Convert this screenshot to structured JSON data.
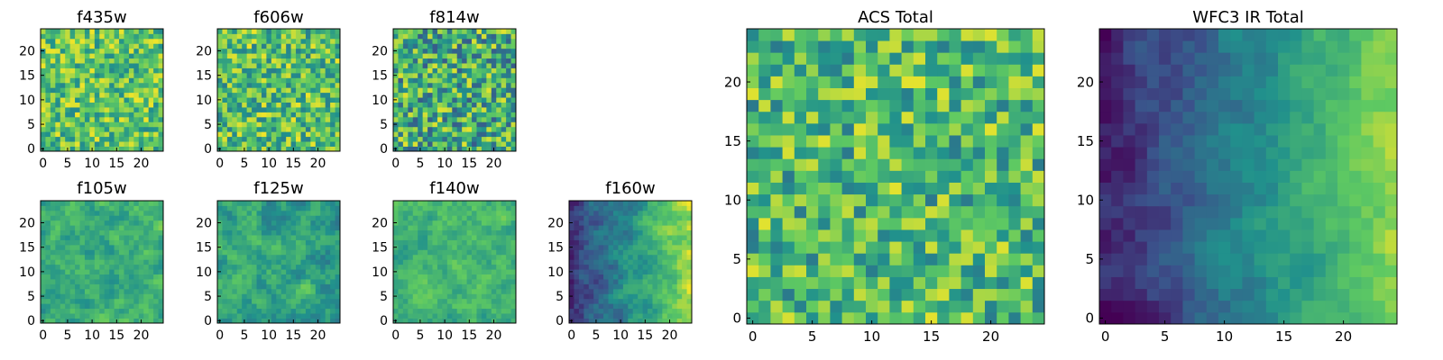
{
  "figure": {
    "description_free": true
  },
  "colormap": {
    "name": "viridis",
    "stops": [
      "#440154",
      "#3b528b",
      "#21918c",
      "#5ec962",
      "#fde725"
    ]
  },
  "chart_data": [
    {
      "type": "heatmap",
      "title": "f435w",
      "grid": [
        25,
        25
      ],
      "xlim": [
        0,
        24
      ],
      "ylim": [
        0,
        24
      ],
      "xticks": [
        "0",
        "5",
        "10",
        "15",
        "20"
      ],
      "yticks": [
        "0",
        "5",
        "10",
        "15",
        "20"
      ],
      "value_range": [
        0,
        1
      ],
      "texture": "noisy",
      "mean": 0.72,
      "spread": 0.26,
      "seed": 11
    },
    {
      "type": "heatmap",
      "title": "f606w",
      "grid": [
        25,
        25
      ],
      "xlim": [
        0,
        24
      ],
      "ylim": [
        0,
        24
      ],
      "xticks": [
        "0",
        "5",
        "10",
        "15",
        "20"
      ],
      "yticks": [
        "0",
        "5",
        "10",
        "15",
        "20"
      ],
      "value_range": [
        0,
        1
      ],
      "texture": "noisy",
      "mean": 0.7,
      "spread": 0.28,
      "seed": 23
    },
    {
      "type": "heatmap",
      "title": "f814w",
      "grid": [
        25,
        25
      ],
      "xlim": [
        0,
        24
      ],
      "ylim": [
        0,
        24
      ],
      "xticks": [
        "0",
        "5",
        "10",
        "15",
        "20"
      ],
      "yticks": [
        "0",
        "5",
        "10",
        "15",
        "20"
      ],
      "value_range": [
        0,
        1
      ],
      "texture": "noisy",
      "mean": 0.62,
      "spread": 0.34,
      "seed": 37
    },
    {
      "type": "heatmap",
      "title": "f105w",
      "grid": [
        25,
        25
      ],
      "xlim": [
        0,
        24
      ],
      "ylim": [
        0,
        24
      ],
      "xticks": [
        "0",
        "5",
        "10",
        "15",
        "20"
      ],
      "yticks": [
        "0",
        "5",
        "10",
        "15",
        "20"
      ],
      "value_range": [
        0,
        1
      ],
      "texture": "smooth",
      "mean": 0.62,
      "spread": 0.3,
      "seed": 41
    },
    {
      "type": "heatmap",
      "title": "f125w",
      "grid": [
        25,
        25
      ],
      "xlim": [
        0,
        24
      ],
      "ylim": [
        0,
        24
      ],
      "xticks": [
        "0",
        "5",
        "10",
        "15",
        "20"
      ],
      "yticks": [
        "0",
        "5",
        "10",
        "15",
        "20"
      ],
      "value_range": [
        0,
        1
      ],
      "texture": "smooth",
      "mean": 0.58,
      "spread": 0.32,
      "seed": 53
    },
    {
      "type": "heatmap",
      "title": "f140w",
      "grid": [
        25,
        25
      ],
      "xlim": [
        0,
        24
      ],
      "ylim": [
        0,
        24
      ],
      "xticks": [
        "0",
        "5",
        "10",
        "15",
        "20"
      ],
      "yticks": [
        "0",
        "5",
        "10",
        "15",
        "20"
      ],
      "value_range": [
        0,
        1
      ],
      "texture": "smooth",
      "mean": 0.66,
      "spread": 0.26,
      "seed": 67
    },
    {
      "type": "heatmap",
      "title": "f160w",
      "grid": [
        25,
        25
      ],
      "xlim": [
        0,
        24
      ],
      "ylim": [
        0,
        24
      ],
      "xticks": [
        "0",
        "5",
        "10",
        "15",
        "20"
      ],
      "yticks": [
        "0",
        "5",
        "10",
        "15",
        "20"
      ],
      "value_range": [
        0,
        1
      ],
      "texture": "gradient",
      "mean": 0.55,
      "spread": 0.28,
      "seed": 71
    },
    {
      "type": "heatmap",
      "title": "ACS Total",
      "grid": [
        25,
        25
      ],
      "xlim": [
        0,
        24
      ],
      "ylim": [
        0,
        24
      ],
      "xticks": [
        "0",
        "5",
        "10",
        "15",
        "20"
      ],
      "yticks": [
        "0",
        "5",
        "10",
        "15",
        "20"
      ],
      "value_range": [
        0,
        1
      ],
      "texture": "noisy",
      "mean": 0.68,
      "spread": 0.28,
      "seed": 89
    },
    {
      "type": "heatmap",
      "title": "WFC3 IR Total",
      "grid": [
        25,
        25
      ],
      "xlim": [
        0,
        24
      ],
      "ylim": [
        0,
        24
      ],
      "xticks": [
        "0",
        "5",
        "10",
        "15",
        "20"
      ],
      "yticks": [
        "0",
        "5",
        "10",
        "15",
        "20"
      ],
      "value_range": [
        0,
        1
      ],
      "texture": "gradient",
      "mean": 0.5,
      "spread": 0.2,
      "seed": 97
    }
  ]
}
